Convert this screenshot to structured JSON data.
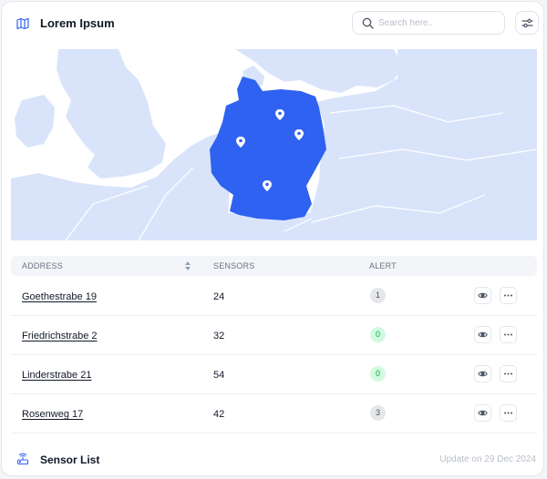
{
  "header": {
    "title": "Lorem Ipsum",
    "title_icon": "map-icon",
    "search_placeholder": "Search here..",
    "filter_icon": "sliders-icon"
  },
  "map": {
    "highlighted_region": "Germany",
    "colors": {
      "land": "#d9e4fb",
      "water": "#ffffff",
      "highlight": "#2f62f0",
      "pin": "#ffffff"
    },
    "pin_count": 4
  },
  "table": {
    "columns": [
      "ADDRESS",
      "SENSORS",
      "ALERT"
    ],
    "rows": [
      {
        "address": "Goethestrabe 19",
        "sensors": "24",
        "alert": "1",
        "alert_status": "gray"
      },
      {
        "address": "Friedrichstrabe 2",
        "sensors": "32",
        "alert": "0",
        "alert_status": "green"
      },
      {
        "address": "Linderstrabe 21",
        "sensors": "54",
        "alert": "0",
        "alert_status": "green"
      },
      {
        "address": "Rosenweg 17",
        "sensors": "42",
        "alert": "3",
        "alert_status": "gray"
      }
    ]
  },
  "footer": {
    "title": "Sensor List",
    "icon": "router-icon",
    "updated": "Update on 29 Dec 2024"
  }
}
